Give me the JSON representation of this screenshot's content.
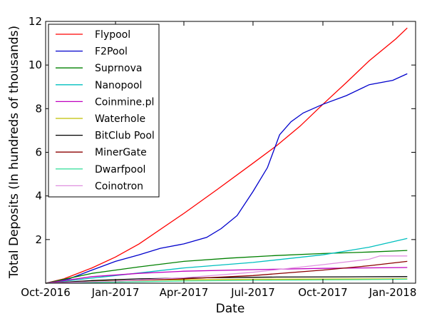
{
  "chart_data": {
    "type": "line",
    "title": "",
    "xlabel": "Date",
    "ylabel": "Total Deposits (In hundreds of thousands)",
    "x_ticks": [
      "Oct-2016",
      "Jan-2017",
      "Apr-2017",
      "Jul-2017",
      "Oct-2017",
      "Jan-2018"
    ],
    "y_ticks": [
      "2",
      "4",
      "6",
      "8",
      "10",
      "12"
    ],
    "xlim": [
      "2016-10-01",
      "2018-01-31"
    ],
    "ylim": [
      0,
      12
    ],
    "grid": false,
    "legend_position": "top-left",
    "series": [
      {
        "name": "Flypool",
        "color": "#ff0000",
        "x": [
          "2016-10-01",
          "2016-10-25",
          "2016-12-01",
          "2017-01-01",
          "2017-02-01",
          "2017-04-01",
          "2017-05-15",
          "2017-07-01",
          "2017-08-01",
          "2017-09-01",
          "2017-10-01",
          "2017-11-01",
          "2017-12-01",
          "2018-01-05",
          "2018-01-20"
        ],
        "y": [
          0,
          0.2,
          0.7,
          1.2,
          1.8,
          3.2,
          4.3,
          5.5,
          6.3,
          7.2,
          8.2,
          9.2,
          10.2,
          11.2,
          11.7
        ]
      },
      {
        "name": "F2Pool",
        "color": "#0000cc",
        "x": [
          "2016-10-01",
          "2016-11-01",
          "2016-12-01",
          "2017-01-01",
          "2017-02-01",
          "2017-03-01",
          "2017-04-01",
          "2017-05-01",
          "2017-05-20",
          "2017-06-10",
          "2017-07-01",
          "2017-07-20",
          "2017-08-05",
          "2017-08-20",
          "2017-09-05",
          "2017-10-01",
          "2017-11-01",
          "2017-12-01",
          "2018-01-01",
          "2018-01-20"
        ],
        "y": [
          0,
          0.2,
          0.6,
          1.0,
          1.3,
          1.6,
          1.8,
          2.1,
          2.5,
          3.1,
          4.2,
          5.3,
          6.8,
          7.4,
          7.8,
          8.2,
          8.6,
          9.1,
          9.3,
          9.6
        ]
      },
      {
        "name": "Suprnova",
        "color": "#008000",
        "x": [
          "2016-10-01",
          "2016-12-01",
          "2017-02-01",
          "2017-04-01",
          "2017-06-01",
          "2017-08-01",
          "2017-10-01",
          "2017-12-01",
          "2018-01-20"
        ],
        "y": [
          0,
          0.45,
          0.75,
          1.0,
          1.15,
          1.27,
          1.36,
          1.43,
          1.5
        ]
      },
      {
        "name": "Nanopool",
        "color": "#00bfbf",
        "x": [
          "2016-10-01",
          "2017-01-01",
          "2017-04-01",
          "2017-07-01",
          "2017-10-01",
          "2017-12-01",
          "2018-01-20"
        ],
        "y": [
          0,
          0.35,
          0.7,
          0.95,
          1.3,
          1.65,
          2.05
        ]
      },
      {
        "name": "Coinmine.pl",
        "color": "#bf00bf",
        "x": [
          "2016-10-01",
          "2016-12-01",
          "2017-02-01",
          "2017-04-01",
          "2017-07-01",
          "2017-10-01",
          "2018-01-20"
        ],
        "y": [
          0,
          0.3,
          0.45,
          0.55,
          0.62,
          0.68,
          0.72
        ]
      },
      {
        "name": "Waterhole",
        "color": "#bfbf00",
        "x": [
          "2016-10-01",
          "2016-12-01",
          "2017-03-01",
          "2017-07-01",
          "2017-10-01",
          "2018-01-20"
        ],
        "y": [
          0,
          0.1,
          0.15,
          0.18,
          0.19,
          0.2
        ]
      },
      {
        "name": "BitClub Pool",
        "color": "#000000",
        "x": [
          "2016-10-01",
          "2016-12-01",
          "2017-02-01",
          "2017-05-01",
          "2017-08-01",
          "2017-11-01",
          "2018-01-20"
        ],
        "y": [
          0,
          0.12,
          0.2,
          0.25,
          0.28,
          0.29,
          0.3
        ]
      },
      {
        "name": "MinerGate",
        "color": "#8b0000",
        "x": [
          "2016-10-01",
          "2017-01-01",
          "2017-04-01",
          "2017-07-01",
          "2017-10-01",
          "2017-12-01",
          "2018-01-20"
        ],
        "y": [
          0,
          0.1,
          0.2,
          0.35,
          0.6,
          0.8,
          1.0
        ]
      },
      {
        "name": "Dwarfpool",
        "color": "#40e0a0",
        "x": [
          "2016-10-01",
          "2017-01-01",
          "2017-04-01",
          "2017-07-01",
          "2017-10-01",
          "2018-01-20"
        ],
        "y": [
          0,
          0.05,
          0.1,
          0.13,
          0.15,
          0.18
        ]
      },
      {
        "name": "Coinotron",
        "color": "#e090e0",
        "x": [
          "2016-10-01",
          "2017-01-01",
          "2017-04-01",
          "2017-07-01",
          "2017-10-01",
          "2017-12-01",
          "2017-12-15",
          "2018-01-20"
        ],
        "y": [
          0,
          0.1,
          0.25,
          0.5,
          0.85,
          1.1,
          1.25,
          1.25
        ]
      }
    ]
  }
}
